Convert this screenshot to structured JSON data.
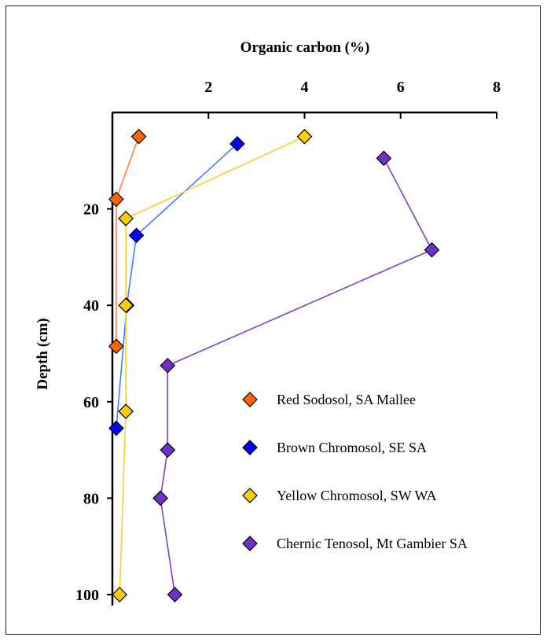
{
  "chart_data": {
    "type": "scatter",
    "title": "",
    "xlabel": "Organic carbon (%)",
    "ylabel": "Depth (cm)",
    "x_axis_position": "top",
    "y_axis_inverted": true,
    "xlim": [
      0,
      8
    ],
    "ylim": [
      0,
      100
    ],
    "xticks": [
      2,
      4,
      6,
      8
    ],
    "yticks": [
      20,
      40,
      60,
      80,
      100
    ],
    "grid": false,
    "legend_position": "lower-right",
    "series": [
      {
        "name": "Red Sodosol, SA Mallee",
        "color": "#ff6600",
        "line_color": "#ff7f3f",
        "marker": "diamond",
        "points": [
          {
            "x": 0.55,
            "y": 5
          },
          {
            "x": 0.08,
            "y": 18
          },
          {
            "x": 0.08,
            "y": 48.5
          }
        ]
      },
      {
        "name": "Brown Chromosol, SE SA",
        "color": "#0000ff",
        "line_color": "#3f7fff",
        "marker": "diamond",
        "points": [
          {
            "x": 2.6,
            "y": 6.5
          },
          {
            "x": 0.5,
            "y": 25.5
          },
          {
            "x": 0.3,
            "y": 40
          },
          {
            "x": 0.08,
            "y": 65.5
          }
        ]
      },
      {
        "name": "Yellow Chromosol, SW WA",
        "color": "#ffcc00",
        "line_color": "#ffcc33",
        "marker": "diamond",
        "points": [
          {
            "x": 4.0,
            "y": 5
          },
          {
            "x": 0.28,
            "y": 22
          },
          {
            "x": 0.28,
            "y": 40
          },
          {
            "x": 0.28,
            "y": 62
          },
          {
            "x": 0.15,
            "y": 100
          }
        ]
      },
      {
        "name": "Chernic Tenosol, Mt Gambier SA",
        "color": "#7030d0",
        "line_color": "#8040c8",
        "marker": "diamond",
        "points": [
          {
            "x": 5.65,
            "y": 9.5
          },
          {
            "x": 6.65,
            "y": 28.5
          },
          {
            "x": 1.15,
            "y": 52.5
          },
          {
            "x": 1.15,
            "y": 70
          },
          {
            "x": 1.0,
            "y": 80
          },
          {
            "x": 1.3,
            "y": 100
          }
        ]
      }
    ]
  }
}
